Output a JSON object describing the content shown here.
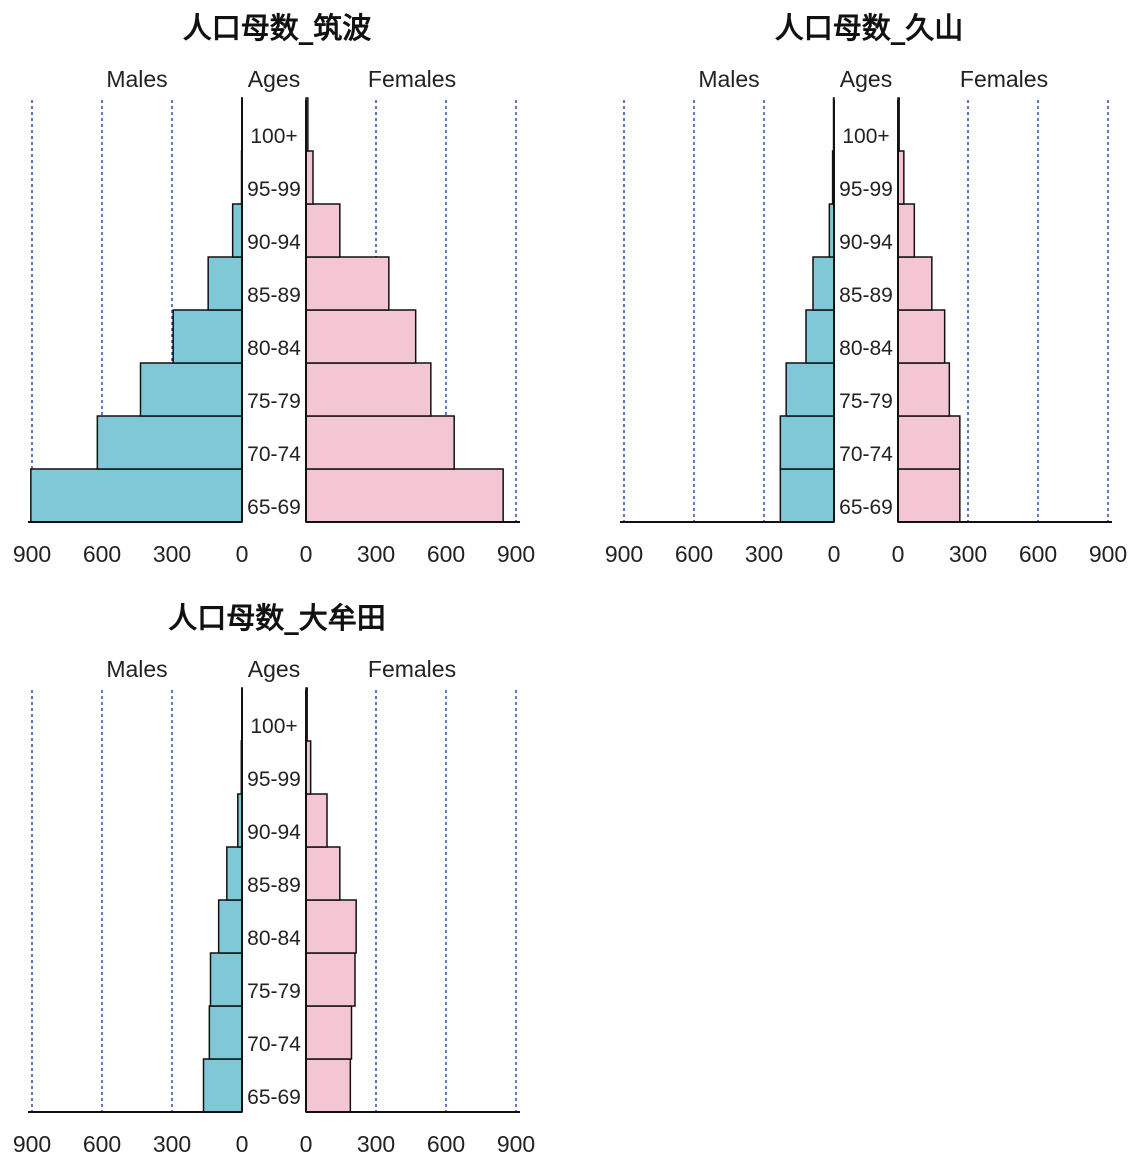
{
  "chart_data": [
    {
      "type": "bar",
      "title": "人口母数_筑波",
      "left_label": "Males",
      "center_label": "Ages",
      "right_label": "Females",
      "categories": [
        "65-69",
        "70-74",
        "75-79",
        "80-84",
        "85-89",
        "90-94",
        "95-99",
        "100+"
      ],
      "series": [
        {
          "name": "Males",
          "color": "#7ec8d8",
          "values": [
            905,
            620,
            435,
            295,
            145,
            40,
            2,
            1
          ]
        },
        {
          "name": "Females",
          "color": "#f4c5d3",
          "values": [
            845,
            635,
            535,
            470,
            355,
            145,
            30,
            8
          ]
        }
      ],
      "xlim": [
        0,
        900
      ],
      "ticks": [
        0,
        300,
        600,
        900
      ],
      "grid": true
    },
    {
      "type": "bar",
      "title": "人口母数_久山",
      "left_label": "Males",
      "center_label": "Ages",
      "right_label": "Females",
      "categories": [
        "65-69",
        "70-74",
        "75-79",
        "80-84",
        "85-89",
        "90-94",
        "95-99",
        "100+"
      ],
      "series": [
        {
          "name": "Males",
          "color": "#7ec8d8",
          "values": [
            230,
            230,
            205,
            120,
            90,
            20,
            6,
            2
          ]
        },
        {
          "name": "Females",
          "color": "#f4c5d3",
          "values": [
            265,
            265,
            220,
            200,
            145,
            70,
            25,
            5
          ]
        }
      ],
      "xlim": [
        0,
        900
      ],
      "ticks": [
        0,
        300,
        600,
        900
      ],
      "grid": true
    },
    {
      "type": "bar",
      "title": "人口母数_大牟田",
      "left_label": "Males",
      "center_label": "Ages",
      "right_label": "Females",
      "categories": [
        "65-69",
        "70-74",
        "75-79",
        "80-84",
        "85-89",
        "90-94",
        "95-99",
        "100+"
      ],
      "series": [
        {
          "name": "Males",
          "color": "#7ec8d8",
          "values": [
            165,
            140,
            135,
            100,
            65,
            18,
            3,
            1
          ]
        },
        {
          "name": "Females",
          "color": "#f4c5d3",
          "values": [
            190,
            195,
            210,
            215,
            145,
            90,
            20,
            5
          ]
        }
      ],
      "xlim": [
        0,
        900
      ],
      "ticks": [
        0,
        300,
        600,
        900
      ],
      "grid": true
    }
  ]
}
